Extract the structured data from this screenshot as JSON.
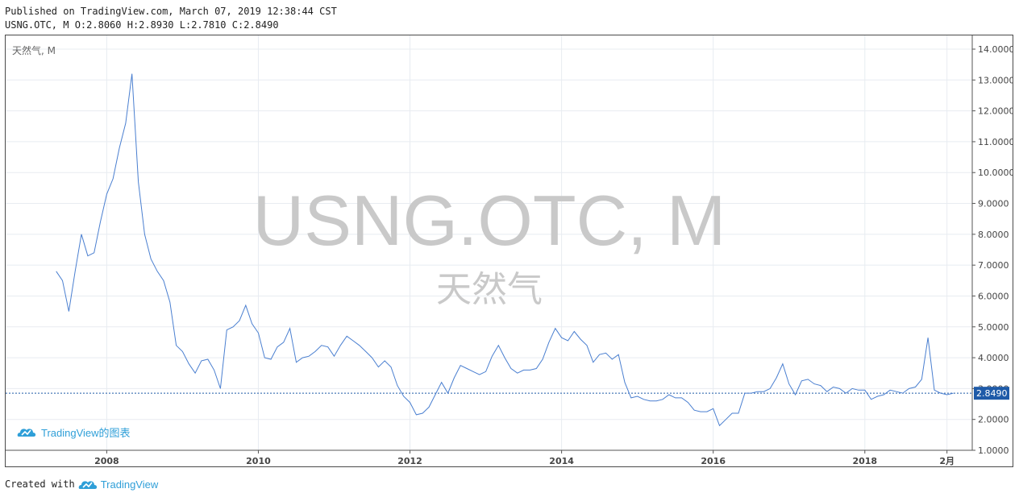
{
  "header": {
    "published_line": "Published on TradingView.com, March 07, 2019 12:38:44 CST",
    "ohlc_line": "USNG.OTC, M O:2.8060 H:2.8930 L:2.7810 C:2.8490"
  },
  "chart_data": {
    "type": "line",
    "symbol_label": "天然气, M",
    "watermark_symbol": "USNG.OTC, M",
    "watermark_name": "天然气",
    "logo_text": "TradingView的图表",
    "x_tick_labels": [
      "2008",
      "2010",
      "2012",
      "2014",
      "2016",
      "2018",
      "2月"
    ],
    "y_tick_labels": [
      "14.0000",
      "13.0000",
      "12.0000",
      "11.0000",
      "10.0000",
      "9.0000",
      "8.0000",
      "7.0000",
      "6.0000",
      "5.0000",
      "4.0000",
      "3.0000",
      "2.0000",
      "1.0000"
    ],
    "ylim": [
      1,
      14
    ],
    "xlim": [
      "2006-09",
      "2019-06"
    ],
    "last_price": 2.849,
    "last_price_label": "2.8490",
    "line_color": "#4a7fd0",
    "grid": true,
    "series": [
      {
        "x": [
          "2007-05",
          "2007-06",
          "2007-07",
          "2007-08",
          "2007-09",
          "2007-10",
          "2007-11",
          "2007-12",
          "2008-01",
          "2008-02",
          "2008-03",
          "2008-04",
          "2008-05",
          "2008-06",
          "2008-07",
          "2008-08",
          "2008-09",
          "2008-10",
          "2008-11",
          "2008-12",
          "2009-01",
          "2009-02",
          "2009-03",
          "2009-04",
          "2009-05",
          "2009-06",
          "2009-07",
          "2009-08",
          "2009-09",
          "2009-10",
          "2009-11",
          "2009-12",
          "2010-01",
          "2010-02",
          "2010-03",
          "2010-04",
          "2010-05",
          "2010-06",
          "2010-07",
          "2010-08",
          "2010-09",
          "2010-10",
          "2010-11",
          "2010-12",
          "2011-01",
          "2011-02",
          "2011-03",
          "2011-04",
          "2011-05",
          "2011-06",
          "2011-07",
          "2011-08",
          "2011-09",
          "2011-10",
          "2011-11",
          "2011-12",
          "2012-01",
          "2012-02",
          "2012-03",
          "2012-04",
          "2012-05",
          "2012-06",
          "2012-07",
          "2012-08",
          "2012-09",
          "2012-10",
          "2012-11",
          "2012-12",
          "2013-01",
          "2013-02",
          "2013-03",
          "2013-04",
          "2013-05",
          "2013-06",
          "2013-07",
          "2013-08",
          "2013-09",
          "2013-10",
          "2013-11",
          "2013-12",
          "2014-01",
          "2014-02",
          "2014-03",
          "2014-04",
          "2014-05",
          "2014-06",
          "2014-07",
          "2014-08",
          "2014-09",
          "2014-10",
          "2014-11",
          "2014-12",
          "2015-01",
          "2015-02",
          "2015-03",
          "2015-04",
          "2015-05",
          "2015-06",
          "2015-07",
          "2015-08",
          "2015-09",
          "2015-10",
          "2015-11",
          "2015-12",
          "2016-01",
          "2016-02",
          "2016-03",
          "2016-04",
          "2016-05",
          "2016-06",
          "2016-07",
          "2016-08",
          "2016-09",
          "2016-10",
          "2016-11",
          "2016-12",
          "2017-01",
          "2017-02",
          "2017-03",
          "2017-04",
          "2017-05",
          "2017-06",
          "2017-07",
          "2017-08",
          "2017-09",
          "2017-10",
          "2017-11",
          "2017-12",
          "2018-01",
          "2018-02",
          "2018-03",
          "2018-04",
          "2018-05",
          "2018-06",
          "2018-07",
          "2018-08",
          "2018-09",
          "2018-10",
          "2018-11",
          "2018-12",
          "2019-01",
          "2019-02",
          "2019-03"
        ],
        "y": [
          6.8,
          6.5,
          5.5,
          6.8,
          8.0,
          7.3,
          7.4,
          8.4,
          9.3,
          9.8,
          10.8,
          11.6,
          13.2,
          9.7,
          8.0,
          7.2,
          6.8,
          6.5,
          5.8,
          4.4,
          4.2,
          3.8,
          3.5,
          3.9,
          3.95,
          3.6,
          3.0,
          4.9,
          5.0,
          5.2,
          5.7,
          5.1,
          4.8,
          4.0,
          3.95,
          4.35,
          4.5,
          4.95,
          3.85,
          4.0,
          4.05,
          4.2,
          4.4,
          4.35,
          4.05,
          4.4,
          4.7,
          4.55,
          4.4,
          4.2,
          4.0,
          3.7,
          3.9,
          3.7,
          3.1,
          2.75,
          2.55,
          2.15,
          2.2,
          2.4,
          2.8,
          3.2,
          2.85,
          3.35,
          3.75,
          3.65,
          3.55,
          3.45,
          3.55,
          4.05,
          4.4,
          4.0,
          3.65,
          3.5,
          3.6,
          3.6,
          3.65,
          3.95,
          4.5,
          4.95,
          4.65,
          4.55,
          4.85,
          4.6,
          4.4,
          3.85,
          4.1,
          4.15,
          3.95,
          4.1,
          3.2,
          2.7,
          2.75,
          2.65,
          2.6,
          2.6,
          2.65,
          2.8,
          2.7,
          2.7,
          2.55,
          2.3,
          2.25,
          2.25,
          2.35,
          1.8,
          2.0,
          2.2,
          2.2,
          2.85,
          2.85,
          2.9,
          2.9,
          3.0,
          3.35,
          3.8,
          3.15,
          2.8,
          3.25,
          3.3,
          3.15,
          3.1,
          2.9,
          3.05,
          3.0,
          2.85,
          3.0,
          2.95,
          2.95,
          2.65,
          2.75,
          2.8,
          2.95,
          2.9,
          2.85,
          3.0,
          3.05,
          3.3,
          4.65,
          2.95,
          2.85,
          2.8,
          2.85
        ]
      }
    ]
  },
  "footer": {
    "created_with": "Created with",
    "brand": "TradingView"
  }
}
